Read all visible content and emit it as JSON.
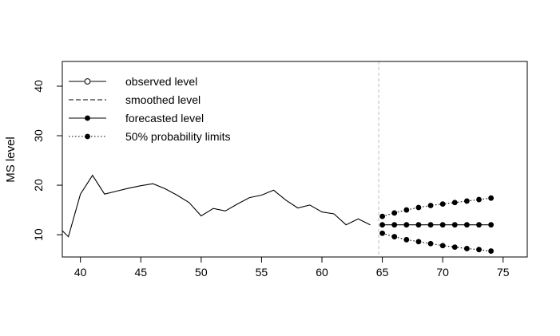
{
  "chart_data": {
    "type": "line",
    "title": "",
    "xlabel": "",
    "ylabel": "MS level",
    "xlim": [
      38.5,
      77
    ],
    "ylim": [
      5.5,
      45
    ],
    "x_ticks": [
      "40",
      "45",
      "50",
      "55",
      "60",
      "65",
      "70",
      "75"
    ],
    "y_ticks": [
      "10",
      "20",
      "30",
      "40"
    ],
    "grid": false,
    "legend_position": "top-left",
    "forecast_origin": 64.7,
    "legend": [
      {
        "label": "observed level",
        "style": "solid-open-circle"
      },
      {
        "label": "smoothed level",
        "style": "dashed"
      },
      {
        "label": "forecasted level",
        "style": "solid-filled-circle"
      },
      {
        "label": "50% probability limits",
        "style": "dotted-filled-circle"
      }
    ],
    "series": [
      {
        "name": "observed level",
        "x": [
          38.5,
          39,
          40,
          41,
          42,
          43,
          44,
          45,
          46,
          47,
          48,
          49,
          50,
          51,
          52,
          53,
          54,
          55,
          56,
          57,
          58,
          59,
          60,
          61,
          62,
          63,
          64
        ],
        "values": [
          10.8,
          9.6,
          18.2,
          22.0,
          18.2,
          18.8,
          19.4,
          19.9,
          20.3,
          19.3,
          18.0,
          16.5,
          13.8,
          15.3,
          14.8,
          16.2,
          17.5,
          18.0,
          19.0,
          17.0,
          15.4,
          16.0,
          14.6,
          14.2,
          12.0,
          13.2,
          12.0
        ]
      },
      {
        "name": "forecasted level",
        "x": [
          65,
          66,
          67,
          68,
          69,
          70,
          71,
          72,
          73,
          74
        ],
        "values": [
          12.0,
          12.0,
          12.0,
          12.0,
          12.0,
          12.0,
          12.0,
          12.0,
          12.0,
          12.0
        ]
      },
      {
        "name": "50% probability limits (upper)",
        "x": [
          65,
          66,
          67,
          68,
          69,
          70,
          71,
          72,
          73,
          74
        ],
        "values": [
          13.7,
          14.4,
          15.0,
          15.5,
          15.9,
          16.2,
          16.5,
          16.8,
          17.1,
          17.4
        ]
      },
      {
        "name": "50% probability limits (lower)",
        "x": [
          65,
          66,
          67,
          68,
          69,
          70,
          71,
          72,
          73,
          74
        ],
        "values": [
          10.3,
          9.6,
          9.0,
          8.6,
          8.2,
          7.8,
          7.5,
          7.2,
          7.0,
          6.7
        ]
      }
    ],
    "colors": {
      "line": "#000000",
      "vline": "#bbbbbb"
    }
  }
}
